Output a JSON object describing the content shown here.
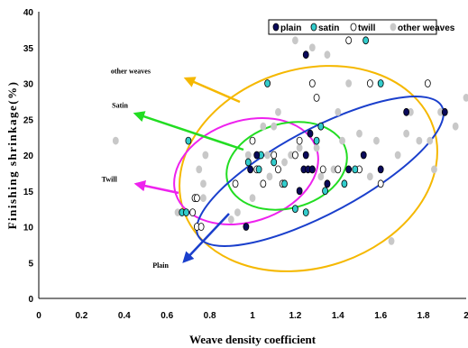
{
  "chart_data": {
    "type": "scatter",
    "xlabel": "Weave density coefficient",
    "ylabel": "Finishing shrinkage(%)",
    "xlim": [
      0,
      2
    ],
    "ylim": [
      0,
      40
    ],
    "x_ticks": [
      "0",
      "0.2",
      "0.4",
      "0.6",
      "0.8",
      "1",
      "1.2",
      "1.4",
      "1.6",
      "1.8",
      "2"
    ],
    "y_ticks": [
      "0",
      "5",
      "10",
      "15",
      "20",
      "25",
      "30",
      "35",
      "40"
    ],
    "grid": false,
    "legend_position": "top-right",
    "series": [
      {
        "name": "plain",
        "marker": "filled-dark",
        "color": "#0a0a5a",
        "points": [
          [
            0.97,
            10
          ],
          [
            0.99,
            18
          ],
          [
            1.02,
            20
          ],
          [
            1.25,
            34
          ],
          [
            1.24,
            18
          ],
          [
            1.26,
            18
          ],
          [
            1.28,
            18
          ],
          [
            1.22,
            15
          ],
          [
            1.25,
            20
          ],
          [
            1.27,
            23
          ],
          [
            1.35,
            16
          ],
          [
            1.45,
            18
          ],
          [
            1.52,
            20
          ],
          [
            1.6,
            18
          ],
          [
            1.72,
            26
          ],
          [
            1.9,
            26
          ]
        ]
      },
      {
        "name": "satin",
        "marker": "filled-cyan",
        "color": "#33cccc",
        "points": [
          [
            0.67,
            12
          ],
          [
            0.69,
            12
          ],
          [
            0.7,
            22
          ],
          [
            0.98,
            19
          ],
          [
            1.03,
            18
          ],
          [
            1.04,
            20
          ],
          [
            1.07,
            30
          ],
          [
            1.1,
            19
          ],
          [
            1.15,
            16
          ],
          [
            1.2,
            12.5
          ],
          [
            1.25,
            12
          ],
          [
            1.28,
            18
          ],
          [
            1.3,
            22
          ],
          [
            1.32,
            24
          ],
          [
            1.34,
            15
          ],
          [
            1.35,
            16
          ],
          [
            1.43,
            16
          ],
          [
            1.48,
            18
          ],
          [
            1.53,
            36
          ],
          [
            1.6,
            30
          ]
        ]
      },
      {
        "name": "twill",
        "marker": "open",
        "color": "#000000",
        "points": [
          [
            0.72,
            12
          ],
          [
            0.73,
            14
          ],
          [
            0.74,
            14
          ],
          [
            0.74,
            10
          ],
          [
            0.76,
            10
          ],
          [
            0.92,
            16
          ],
          [
            1.0,
            22
          ],
          [
            1.02,
            18
          ],
          [
            1.05,
            16
          ],
          [
            1.1,
            20
          ],
          [
            1.12,
            18
          ],
          [
            1.14,
            16
          ],
          [
            1.2,
            20
          ],
          [
            1.22,
            22
          ],
          [
            1.28,
            30
          ],
          [
            1.3,
            28
          ],
          [
            1.33,
            18
          ],
          [
            1.4,
            18
          ],
          [
            1.45,
            36
          ],
          [
            1.5,
            18
          ],
          [
            1.55,
            30
          ],
          [
            1.6,
            16
          ],
          [
            1.82,
            30
          ]
        ]
      },
      {
        "name": "other weaves",
        "marker": "filled-gray",
        "color": "#c8c8c8",
        "points": [
          [
            0.36,
            22
          ],
          [
            0.65,
            12
          ],
          [
            0.75,
            18
          ],
          [
            0.77,
            16
          ],
          [
            0.77,
            14
          ],
          [
            0.78,
            20
          ],
          [
            0.9,
            11
          ],
          [
            0.93,
            12
          ],
          [
            0.98,
            20
          ],
          [
            1.0,
            14
          ],
          [
            1.05,
            24
          ],
          [
            1.07,
            20
          ],
          [
            1.08,
            17
          ],
          [
            1.1,
            24
          ],
          [
            1.12,
            26
          ],
          [
            1.15,
            19
          ],
          [
            1.18,
            20
          ],
          [
            1.2,
            36
          ],
          [
            1.22,
            21
          ],
          [
            1.28,
            35
          ],
          [
            1.3,
            28
          ],
          [
            1.3,
            21
          ],
          [
            1.32,
            17
          ],
          [
            1.35,
            34
          ],
          [
            1.38,
            18
          ],
          [
            1.4,
            26
          ],
          [
            1.42,
            22
          ],
          [
            1.45,
            30
          ],
          [
            1.5,
            23
          ],
          [
            1.55,
            17
          ],
          [
            1.58,
            22
          ],
          [
            1.65,
            8
          ],
          [
            1.68,
            20
          ],
          [
            1.72,
            23
          ],
          [
            1.74,
            26
          ],
          [
            1.78,
            22
          ],
          [
            1.83,
            22
          ],
          [
            1.85,
            18
          ],
          [
            1.88,
            26
          ],
          [
            1.95,
            24
          ],
          [
            2.0,
            28
          ]
        ]
      }
    ],
    "annotations": [
      {
        "text": "other weaves",
        "label_x": 0.43,
        "label_y": 31.4
      },
      {
        "text": "Satin",
        "label_x": 0.38,
        "label_y": 26.6
      },
      {
        "text": "Twill",
        "label_x": 0.33,
        "label_y": 16.3
      },
      {
        "text": "Plain",
        "label_x": 0.57,
        "label_y": 4.3
      }
    ]
  }
}
